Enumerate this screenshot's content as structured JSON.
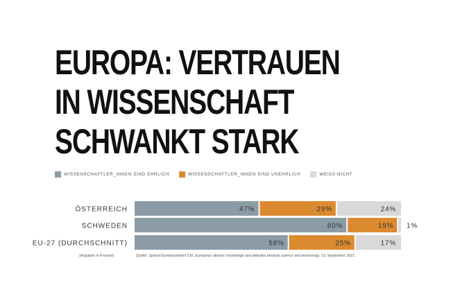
{
  "title_lines": [
    "EUROPA: VERTRAUEN",
    "IN WISSENSCHAFT",
    "SCHWANKT STARK"
  ],
  "colors": {
    "honest": "#8c9ca7",
    "dishonest": "#dc8a30",
    "dontknow": "#d9d9d9"
  },
  "chart_data": {
    "type": "bar",
    "orientation": "horizontal",
    "stacked": true,
    "unit": "%",
    "categories": [
      "ÖSTERREICH",
      "SCHWEDEN",
      "EU-27 (DURCHSCHNITT)"
    ],
    "series": [
      {
        "name": "WISSENSCHAFTLER_INNEN SIND EHRLICH",
        "values": [
          47,
          80,
          58
        ]
      },
      {
        "name": "WISSENSCHAFTLER_INNEN SIND UNEHRLICH",
        "values": [
          29,
          19,
          25
        ]
      },
      {
        "name": "WEISS NICHT",
        "values": [
          24,
          1,
          17
        ]
      }
    ],
    "xlim": [
      0,
      100
    ],
    "legend": "top-left",
    "grid": false
  },
  "footnote": {
    "unit_note": "(Angaben in Prozent)",
    "source": "Quelle: Special Eurobarometer 516. European citizens' knowledge and attitudes towards science and technology. 23. September 2021."
  }
}
